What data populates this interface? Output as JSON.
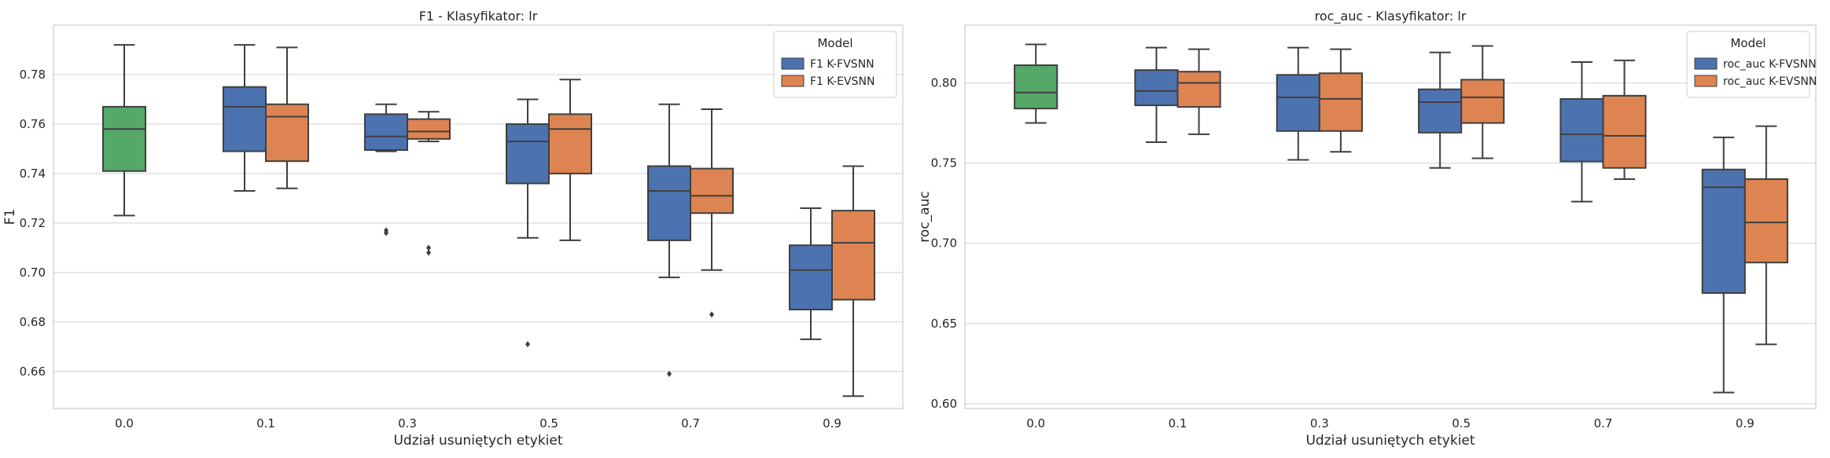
{
  "chart_data": [
    {
      "type": "box",
      "title": "F1 - Klasyfikator: lr",
      "xlabel": "Udział usuniętych etykiet",
      "ylabel": "F1",
      "categories": [
        "0.0",
        "0.1",
        "0.3",
        "0.5",
        "0.7",
        "0.9"
      ],
      "ylim": [
        0.645,
        0.8
      ],
      "yticks": [
        0.66,
        0.68,
        0.7,
        0.72,
        0.74,
        0.76,
        0.78
      ],
      "ytick_labels": [
        "0.66",
        "0.68",
        "0.70",
        "0.72",
        "0.74",
        "0.76",
        "0.78"
      ],
      "grid": true,
      "legend": {
        "title": "Model",
        "placement": "top-right"
      },
      "baseline": {
        "category": "0.0",
        "color": "#55a868",
        "whislo": 0.723,
        "q1": 0.741,
        "median": 0.758,
        "q3": 0.767,
        "whishi": 0.792,
        "fliers": []
      },
      "series": [
        {
          "name": "F1 K-FVSNN",
          "color": "#4c72b0",
          "boxes": [
            {
              "category": "0.1",
              "whislo": 0.733,
              "q1": 0.749,
              "median": 0.767,
              "q3": 0.775,
              "whishi": 0.792,
              "fliers": []
            },
            {
              "category": "0.3",
              "whislo": 0.749,
              "q1": 0.7495,
              "median": 0.755,
              "q3": 0.764,
              "whishi": 0.768,
              "fliers": [
                0.717,
                0.716
              ]
            },
            {
              "category": "0.5",
              "whislo": 0.714,
              "q1": 0.736,
              "median": 0.753,
              "q3": 0.76,
              "whishi": 0.77,
              "fliers": [
                0.671
              ]
            },
            {
              "category": "0.7",
              "whislo": 0.698,
              "q1": 0.713,
              "median": 0.733,
              "q3": 0.743,
              "whishi": 0.768,
              "fliers": [
                0.659
              ]
            },
            {
              "category": "0.9",
              "whislo": 0.673,
              "q1": 0.685,
              "median": 0.701,
              "q3": 0.711,
              "whishi": 0.726,
              "fliers": []
            }
          ]
        },
        {
          "name": "F1 K-EVSNN",
          "color": "#dd8452",
          "boxes": [
            {
              "category": "0.1",
              "whislo": 0.734,
              "q1": 0.745,
              "median": 0.763,
              "q3": 0.768,
              "whishi": 0.791,
              "fliers": []
            },
            {
              "category": "0.3",
              "whislo": 0.753,
              "q1": 0.754,
              "median": 0.757,
              "q3": 0.762,
              "whishi": 0.765,
              "fliers": [
                0.71,
                0.708
              ]
            },
            {
              "category": "0.5",
              "whislo": 0.713,
              "q1": 0.74,
              "median": 0.758,
              "q3": 0.764,
              "whishi": 0.778,
              "fliers": []
            },
            {
              "category": "0.7",
              "whislo": 0.701,
              "q1": 0.724,
              "median": 0.731,
              "q3": 0.742,
              "whishi": 0.766,
              "fliers": [
                0.683
              ]
            },
            {
              "category": "0.9",
              "whislo": 0.65,
              "q1": 0.689,
              "median": 0.712,
              "q3": 0.725,
              "whishi": 0.743,
              "fliers": []
            }
          ]
        }
      ]
    },
    {
      "type": "box",
      "title": "roc_auc - Klasyfikator: lr",
      "xlabel": "Udział usuniętych etykiet",
      "ylabel": "roc_auc",
      "categories": [
        "0.0",
        "0.1",
        "0.3",
        "0.5",
        "0.7",
        "0.9"
      ],
      "ylim": [
        0.597,
        0.836
      ],
      "yticks": [
        0.6,
        0.65,
        0.7,
        0.75,
        0.8
      ],
      "ytick_labels": [
        "0.60",
        "0.65",
        "0.70",
        "0.75",
        "0.80"
      ],
      "grid": true,
      "legend": {
        "title": "Model",
        "placement": "top-right"
      },
      "baseline": {
        "category": "0.0",
        "color": "#55a868",
        "whislo": 0.775,
        "q1": 0.784,
        "median": 0.794,
        "q3": 0.811,
        "whishi": 0.824,
        "fliers": []
      },
      "series": [
        {
          "name": "roc_auc K-FVSNN",
          "color": "#4c72b0",
          "boxes": [
            {
              "category": "0.1",
              "whislo": 0.763,
              "q1": 0.786,
              "median": 0.795,
              "q3": 0.808,
              "whishi": 0.822,
              "fliers": []
            },
            {
              "category": "0.3",
              "whislo": 0.752,
              "q1": 0.77,
              "median": 0.791,
              "q3": 0.805,
              "whishi": 0.822,
              "fliers": []
            },
            {
              "category": "0.5",
              "whislo": 0.747,
              "q1": 0.769,
              "median": 0.788,
              "q3": 0.796,
              "whishi": 0.819,
              "fliers": []
            },
            {
              "category": "0.7",
              "whislo": 0.726,
              "q1": 0.751,
              "median": 0.768,
              "q3": 0.79,
              "whishi": 0.813,
              "fliers": []
            },
            {
              "category": "0.9",
              "whislo": 0.607,
              "q1": 0.669,
              "median": 0.735,
              "q3": 0.746,
              "whishi": 0.766,
              "fliers": []
            }
          ]
        },
        {
          "name": "roc_auc K-EVSNN",
          "color": "#dd8452",
          "boxes": [
            {
              "category": "0.1",
              "whislo": 0.768,
              "q1": 0.785,
              "median": 0.8,
              "q3": 0.807,
              "whishi": 0.821,
              "fliers": []
            },
            {
              "category": "0.3",
              "whislo": 0.757,
              "q1": 0.77,
              "median": 0.79,
              "q3": 0.806,
              "whishi": 0.821,
              "fliers": []
            },
            {
              "category": "0.5",
              "whislo": 0.753,
              "q1": 0.775,
              "median": 0.791,
              "q3": 0.802,
              "whishi": 0.823,
              "fliers": []
            },
            {
              "category": "0.7",
              "whislo": 0.74,
              "q1": 0.747,
              "median": 0.767,
              "q3": 0.792,
              "whishi": 0.814,
              "fliers": []
            },
            {
              "category": "0.9",
              "whislo": 0.637,
              "q1": 0.688,
              "median": 0.713,
              "q3": 0.74,
              "whishi": 0.773,
              "fliers": []
            }
          ]
        }
      ]
    }
  ]
}
